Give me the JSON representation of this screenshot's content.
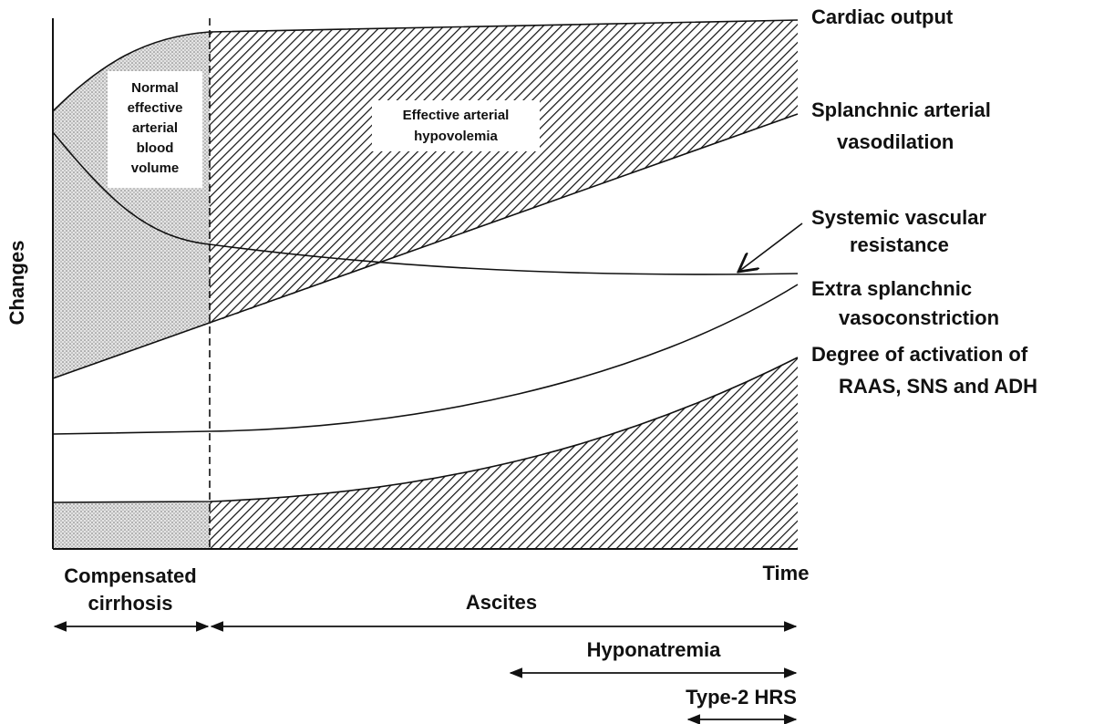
{
  "axis": {
    "y_label": "Changes",
    "x_label": "Time"
  },
  "curves": [
    {
      "lines": [
        "Cardiac output"
      ]
    },
    {
      "lines": [
        "Splanchnic arterial",
        "vasodilation"
      ]
    },
    {
      "lines": [
        "Systemic vascular",
        "resistance"
      ]
    },
    {
      "lines": [
        "Extra splanchnic",
        "vasoconstriction"
      ]
    },
    {
      "lines": [
        "Degree of activation of",
        "RAAS, SNS and ADH"
      ]
    }
  ],
  "regions": [
    {
      "lines": [
        "Normal",
        "effective",
        "arterial",
        "blood",
        "volume"
      ]
    },
    {
      "lines": [
        "Effective arterial",
        "hypovolemia"
      ]
    }
  ],
  "phases": [
    {
      "lines": [
        "Compensated",
        "cirrhosis"
      ]
    },
    {
      "lines": [
        "Ascites"
      ]
    },
    {
      "lines": [
        "Hyponatremia"
      ]
    },
    {
      "lines": [
        "Type-2 HRS"
      ]
    }
  ]
}
